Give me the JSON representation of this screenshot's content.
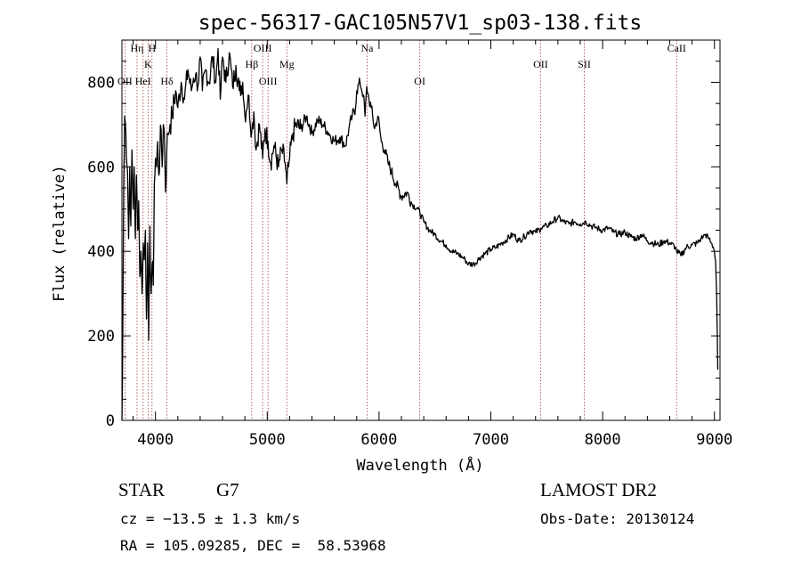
{
  "chart_data": {
    "type": "line",
    "title": "spec-56317-GAC105N57V1_sp03-138.fits",
    "xlabel": "Wavelength (Å)",
    "ylabel": "Flux (relative)",
    "xlim": [
      3700,
      9050
    ],
    "ylim": [
      0,
      900
    ],
    "xticks": [
      "4000",
      "5000",
      "6000",
      "7000",
      "8000",
      "9000"
    ],
    "yticks": [
      "0",
      "200",
      "400",
      "600",
      "800"
    ],
    "grid": false,
    "series": [
      {
        "color": "#000000",
        "x": [
          3700,
          3705,
          3710,
          3716,
          3725,
          3735,
          3750,
          3760,
          3770,
          3780,
          3790,
          3800,
          3810,
          3820,
          3830,
          3840,
          3850,
          3860,
          3870,
          3880,
          3890,
          3900,
          3910,
          3920,
          3930,
          3940,
          3950,
          3960,
          3970,
          3980,
          3990,
          4000,
          4010,
          4020,
          4030,
          4040,
          4050,
          4060,
          4070,
          4080,
          4090,
          4101,
          4110,
          4130,
          4150,
          4180,
          4200,
          4230,
          4260,
          4290,
          4320,
          4340,
          4360,
          4380,
          4400,
          4420,
          4450,
          4480,
          4510,
          4540,
          4560,
          4580,
          4600,
          4630,
          4660,
          4690,
          4720,
          4750,
          4780,
          4800,
          4830,
          4861,
          4880,
          4900,
          4930,
          4959,
          4980,
          5007,
          5030,
          5060,
          5100,
          5130,
          5160,
          5175,
          5190,
          5200,
          5230,
          5260,
          5300,
          5350,
          5400,
          5450,
          5500,
          5550,
          5600,
          5650,
          5700,
          5730,
          5760,
          5790,
          5800,
          5830,
          5860,
          5875,
          5890,
          5910,
          5930,
          5960,
          5990,
          6020,
          6050,
          6080,
          6110,
          6150,
          6200,
          6250,
          6300,
          6350,
          6400,
          6450,
          6500,
          6550,
          6600,
          6650,
          6700,
          6750,
          6770,
          6800,
          6850,
          6900,
          6950,
          7000,
          7050,
          7100,
          7150,
          7200,
          7250,
          7300,
          7350,
          7400,
          7450,
          7500,
          7550,
          7600,
          7650,
          7700,
          7750,
          7800,
          7850,
          7900,
          7950,
          8000,
          8050,
          8100,
          8150,
          8200,
          8250,
          8300,
          8350,
          8400,
          8450,
          8500,
          8550,
          8600,
          8650,
          8662,
          8700,
          8750,
          8800,
          8850,
          8880,
          8900,
          8920,
          8950,
          8970,
          8990,
          9000,
          9010,
          9020,
          9030
        ],
        "y": [
          0,
          90,
          320,
          560,
          720,
          680,
          590,
          430,
          600,
          460,
          640,
          500,
          600,
          430,
          580,
          450,
          520,
          340,
          400,
          300,
          420,
          380,
          450,
          240,
          420,
          190,
          460,
          300,
          370,
          320,
          560,
          620,
          600,
          660,
          580,
          640,
          690,
          600,
          700,
          680,
          540,
          640,
          680,
          700,
          720,
          780,
          740,
          800,
          760,
          830,
          780,
          810,
          820,
          790,
          860,
          780,
          830,
          800,
          860,
          800,
          880,
          760,
          860,
          800,
          870,
          790,
          840,
          780,
          800,
          720,
          770,
          680,
          730,
          640,
          700,
          620,
          690,
          660,
          610,
          650,
          600,
          640,
          610,
          560,
          600,
          620,
          680,
          700,
          690,
          720,
          680,
          710,
          700,
          680,
          660,
          670,
          650,
          690,
          720,
          740,
          780,
          800,
          770,
          720,
          790,
          760,
          740,
          690,
          720,
          660,
          640,
          610,
          590,
          560,
          530,
          540,
          510,
          500,
          470,
          450,
          440,
          425,
          415,
          400,
          395,
          385,
          380,
          370,
          370,
          385,
          395,
          405,
          410,
          420,
          430,
          440,
          425,
          435,
          450,
          445,
          455,
          460,
          470,
          480,
          470,
          465,
          470,
          465,
          470,
          460,
          455,
          450,
          455,
          445,
          440,
          445,
          435,
          430,
          440,
          425,
          420,
          415,
          425,
          420,
          410,
          400,
          390,
          410,
          415,
          420,
          430,
          435,
          440,
          430,
          420,
          410,
          400,
          380,
          300,
          120
        ]
      }
    ],
    "lines": [
      {
        "x": 3727,
        "label": "OII"
      },
      {
        "x": 3835,
        "label": "Hη"
      },
      {
        "x": 3889,
        "label": "HeI"
      },
      {
        "x": 3934,
        "label": "K"
      },
      {
        "x": 3969,
        "label": "H"
      },
      {
        "x": 4102,
        "label": "Hδ"
      },
      {
        "x": 4861,
        "label": "Hβ"
      },
      {
        "x": 4959,
        "label": "OIII"
      },
      {
        "x": 5007,
        "label": "OIII"
      },
      {
        "x": 5175,
        "label": "Mg"
      },
      {
        "x": 5893,
        "label": "Na"
      },
      {
        "x": 6364,
        "label": "OI"
      },
      {
        "x": 7445,
        "label": "OII"
      },
      {
        "x": 7836,
        "label": "SII"
      },
      {
        "x": 8662,
        "label": "CaII"
      }
    ]
  },
  "info": {
    "object_class": "STAR",
    "subclass": "G7",
    "survey": "LAMOST DR2",
    "redshift": "cz = −13.5 ± 1.3 km/s",
    "obs_date": "Obs-Date: 20130124",
    "coords": "RA = 105.09285, DEC =  58.53968"
  }
}
